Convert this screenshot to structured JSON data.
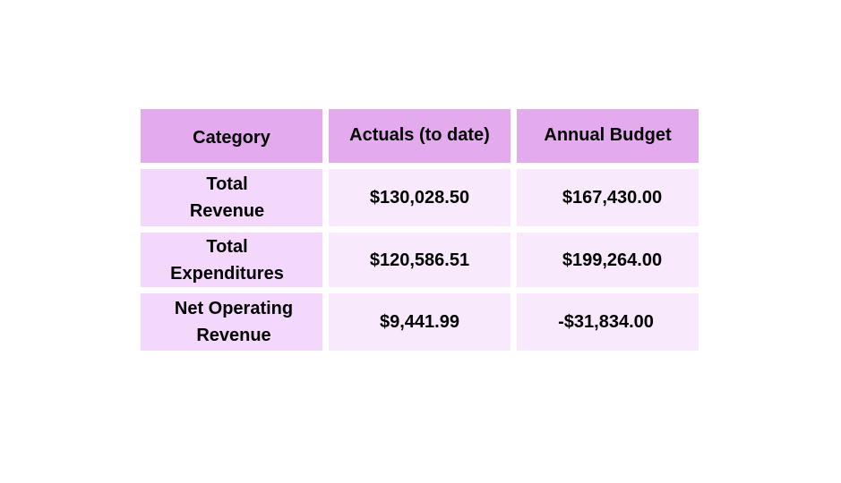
{
  "chart_data": {
    "type": "table",
    "columns": [
      "Category",
      "Actuals (to date)",
      "Annual Budget"
    ],
    "rows": [
      {
        "category": "Total\nRevenue",
        "actuals": "$130,028.50",
        "budget": "$167,430.00"
      },
      {
        "category": "Total\nExpenditures",
        "actuals": "$120,586.51",
        "budget": "$199,264.00"
      },
      {
        "category": "Net Operating\nRevenue",
        "actuals": "$9,441.99",
        "budget": "-$31,834.00"
      }
    ]
  },
  "colors": {
    "header_bg": "#e3aaee",
    "category_cell_bg": "#f4d8fc",
    "value_cell_bg": "#f9e9fd",
    "text": "#000000",
    "background": "#ffffff"
  }
}
